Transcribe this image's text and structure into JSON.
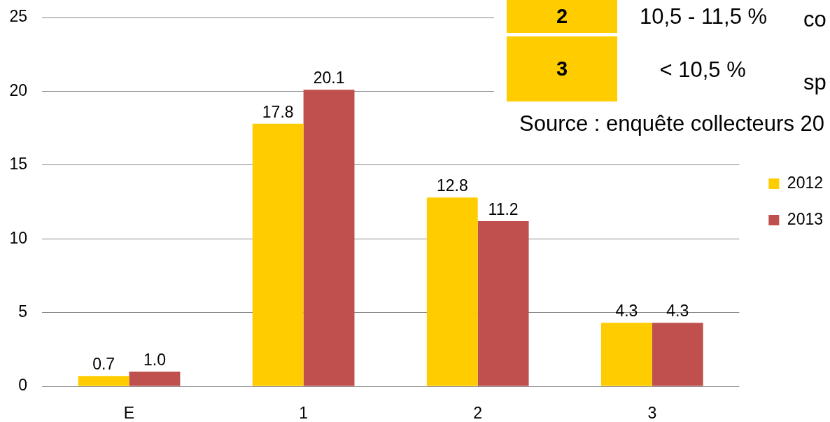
{
  "chart_data": {
    "type": "bar",
    "categories": [
      "E",
      "1",
      "2",
      "3"
    ],
    "series": [
      {
        "name": "2012",
        "color": "#ffcc00",
        "values": [
          0.7,
          17.8,
          12.8,
          4.3
        ],
        "value_labels": [
          "0.7",
          "17.8",
          "12.8",
          "4.3"
        ]
      },
      {
        "name": "2013",
        "color": "#c0504d",
        "values": [
          1.0,
          20.1,
          11.2,
          4.3
        ],
        "value_labels": [
          "1.0",
          "20.1",
          "11.2",
          "4.3"
        ]
      }
    ],
    "ylim": [
      0,
      25
    ],
    "yticks": [
      0,
      5,
      10,
      15,
      20,
      25
    ],
    "grid": "y",
    "legend": "right",
    "annotations": [
      "2",
      "10,5 - 11,5 %",
      "co",
      "3",
      "< 10,5 %",
      "sp",
      "Source : enquête collecteurs 20"
    ]
  }
}
